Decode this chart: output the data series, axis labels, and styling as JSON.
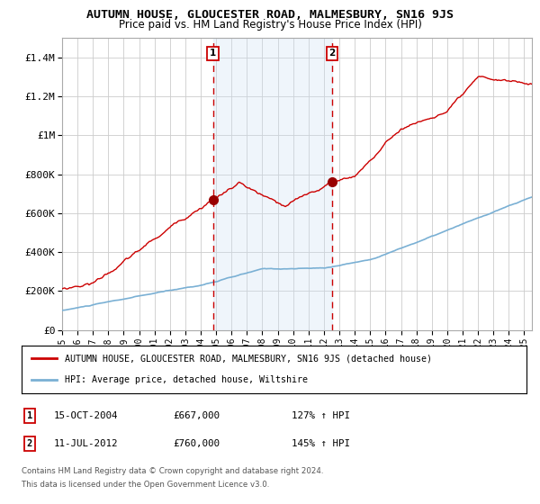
{
  "title": "AUTUMN HOUSE, GLOUCESTER ROAD, MALMESBURY, SN16 9JS",
  "subtitle": "Price paid vs. HM Land Registry's House Price Index (HPI)",
  "title_fontsize": 9.5,
  "subtitle_fontsize": 8.5,
  "background_color": "#ffffff",
  "plot_bg_color": "#ffffff",
  "grid_color": "#cccccc",
  "shade_color": "#cce0f5",
  "hpi_line_color": "#7ab0d4",
  "price_line_color": "#cc0000",
  "marker_color": "#990000",
  "dashed_line_color": "#cc0000",
  "ylim_max": 1500000,
  "ytick_labels": [
    "£0",
    "£200K",
    "£400K",
    "£600K",
    "£800K",
    "£1M",
    "£1.2M",
    "£1.4M"
  ],
  "ytick_values": [
    0,
    200000,
    400000,
    600000,
    800000,
    1000000,
    1200000,
    1400000
  ],
  "sale1_x": 2004.792,
  "sale1_price": 667000,
  "sale1_date_str": "15-OCT-2004",
  "sale1_pct": "127% ↑ HPI",
  "sale2_x": 2012.542,
  "sale2_price": 760000,
  "sale2_date_str": "11-JUL-2012",
  "sale2_pct": "145% ↑ HPI",
  "legend_line1": "AUTUMN HOUSE, GLOUCESTER ROAD, MALMESBURY, SN16 9JS (detached house)",
  "legend_line2": "HPI: Average price, detached house, Wiltshire",
  "footnote1": "Contains HM Land Registry data © Crown copyright and database right 2024.",
  "footnote2": "This data is licensed under the Open Government Licence v3.0.",
  "xstart": 1995.0,
  "xend": 2025.5,
  "xtick_years": [
    1995,
    1996,
    1997,
    1998,
    1999,
    2000,
    2001,
    2002,
    2003,
    2004,
    2005,
    2006,
    2007,
    2008,
    2009,
    2010,
    2011,
    2012,
    2013,
    2014,
    2015,
    2016,
    2017,
    2018,
    2019,
    2020,
    2021,
    2022,
    2023,
    2024,
    2025
  ]
}
